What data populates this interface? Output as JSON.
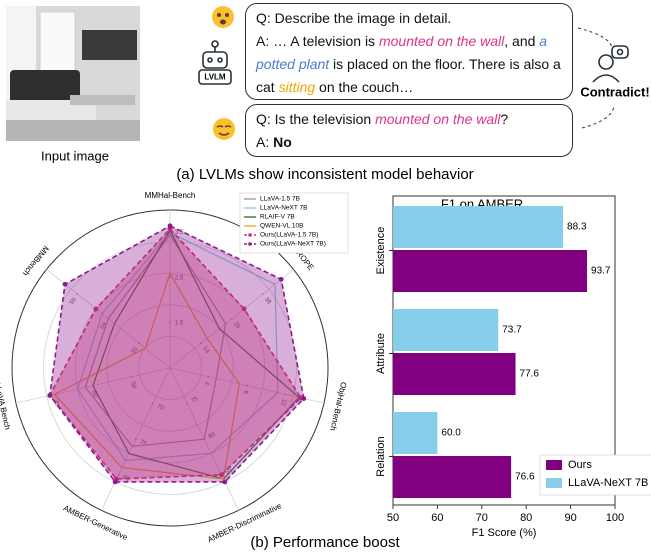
{
  "panel_a": {
    "image_caption": "Input image",
    "model_label": "LVLM",
    "bubble_1": {
      "question": [
        {
          "text": "Q: Describe the image in detail."
        }
      ],
      "answer": [
        {
          "text": "A: … A television is "
        },
        {
          "text": "mounted on the wall",
          "style": "pink"
        },
        {
          "text": ", and "
        },
        {
          "text": "a potted plant",
          "style": "blue"
        },
        {
          "text": " is placed on the floor. There is also a cat "
        },
        {
          "text": "sitting",
          "style": "orange"
        },
        {
          "text": " on the couch…"
        }
      ]
    },
    "bubble_2": {
      "question": [
        {
          "text": "Q: Is the television "
        },
        {
          "text": "mounted on the wall",
          "style": "pink"
        },
        {
          "text": "?"
        }
      ],
      "answer": [
        {
          "text": "A: "
        },
        {
          "text": "No",
          "style": "bold"
        }
      ]
    },
    "verdict": "Contradict!",
    "caption": "(a) LVLMs show inconsistent model behavior"
  },
  "chart_data": [
    {
      "type": "radar",
      "axes": [
        {
          "label": "MMHal-Bench",
          "lim": [
            0.5,
            4.0
          ],
          "ticks": [
            1.5,
            2.5,
            3.5
          ]
        },
        {
          "label": "ROPE",
          "lim": [
            2,
            50
          ],
          "ticks": [
            14,
            26,
            38
          ]
        },
        {
          "label": "ObjHal-Bench",
          "lim": [
            0,
            16
          ],
          "ticks": [
            4,
            8,
            12
          ]
        },
        {
          "label": "AMBER-Discriminative",
          "lim": [
            70,
            90
          ],
          "ticks": [
            75,
            80,
            85
          ]
        },
        {
          "label": "AMBER-Generative",
          "lim": [
            65,
            85
          ],
          "ticks": [
            70,
            75,
            80
          ]
        },
        {
          "label": "LLaVA Bench",
          "lim": [
            40,
            80
          ],
          "ticks": [
            50,
            60,
            70
          ]
        },
        {
          "label": "MMBench",
          "lim": [
            50,
            70
          ],
          "ticks": [
            55,
            60,
            65
          ]
        }
      ],
      "series": [
        {
          "name": "LLaVA-1.5 7B",
          "color": "#9e9e9e",
          "values": [
            3.45,
            23.6,
            4.8,
            80,
            76,
            62,
            60
          ]
        },
        {
          "name": "LLaVA-NeXT 7B",
          "color": "#8ecae6",
          "values": [
            3.5,
            42.8,
            11.2,
            82,
            78,
            64,
            61
          ]
        },
        {
          "name": "RLAIF-V 7B",
          "color": "#2e7d32",
          "values": [
            3.55,
            21.2,
            13.4,
            85.6,
            77,
            60,
            59
          ]
        },
        {
          "name": "QWEN-VL 10B",
          "color": "#f5a623",
          "values": [
            2.6,
            16.4,
            7.2,
            85.6,
            79,
            70,
            54
          ]
        },
        {
          "name": "Ours(LLaVA-1.5 7B)",
          "color": "#d6336c",
          "values": [
            3.58,
            30.8,
            13.6,
            85,
            80.6,
            71.2,
            62
          ],
          "dashed": true,
          "fill": true
        },
        {
          "name": "Ours(LLaVA-NeXT 7B)",
          "color": "#8e1a8e",
          "values": [
            3.65,
            45.2,
            13.9,
            86,
            81,
            71.2,
            67
          ],
          "dashed": true,
          "fill": true
        }
      ],
      "grid": true,
      "legend": "upper right"
    },
    {
      "type": "barh",
      "title": "F1 on AMBER",
      "categories": [
        "Existence",
        "Attribute",
        "Relation"
      ],
      "series": [
        {
          "name": "Ours",
          "color": "#800080",
          "values": [
            93.7,
            77.6,
            76.6
          ]
        },
        {
          "name": "LLaVA-NeXT 7B",
          "color": "#87ceeb",
          "values": [
            88.3,
            73.7,
            60.0
          ],
          "value_labels": [
            "88.3",
            "73.7",
            "60.0"
          ]
        }
      ],
      "x_label": "F1 Score (%)",
      "xlim": [
        50,
        100
      ],
      "xticks": [
        50,
        60,
        70,
        80,
        90,
        100
      ],
      "legend": "lower right"
    }
  ],
  "caption_b": "(b) Performance boost"
}
